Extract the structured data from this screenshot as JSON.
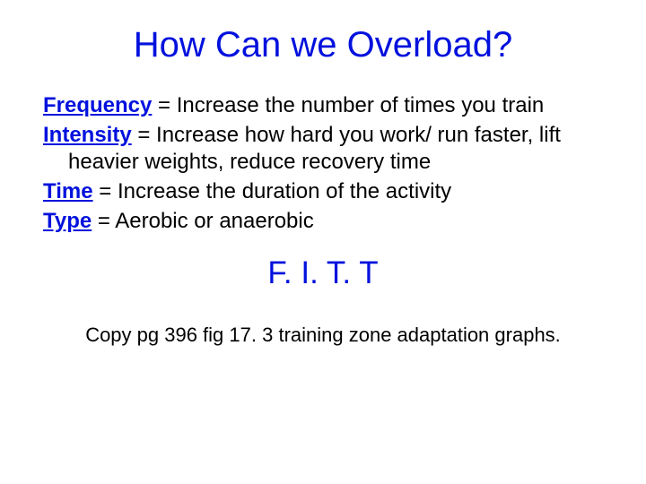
{
  "colors": {
    "title": "#0011dd",
    "term": "#0011dd",
    "acronym": "#0011dd",
    "body_text": "#000000",
    "background": "#ffffff"
  },
  "title": "How Can we Overload?",
  "items": [
    {
      "term": "Frequency",
      "definition": " = Increase the number of times you train"
    },
    {
      "term": "Intensity",
      "definition": " = Increase how hard you work/ run faster, lift heavier weights, reduce recovery time"
    },
    {
      "term": "Time",
      "definition": " = Increase the duration of the activity"
    },
    {
      "term": "Type",
      "definition": " = Aerobic or anaerobic"
    }
  ],
  "acronym": "F. I. T. T",
  "footnote": "Copy pg 396 fig 17. 3 training zone adaptation graphs."
}
